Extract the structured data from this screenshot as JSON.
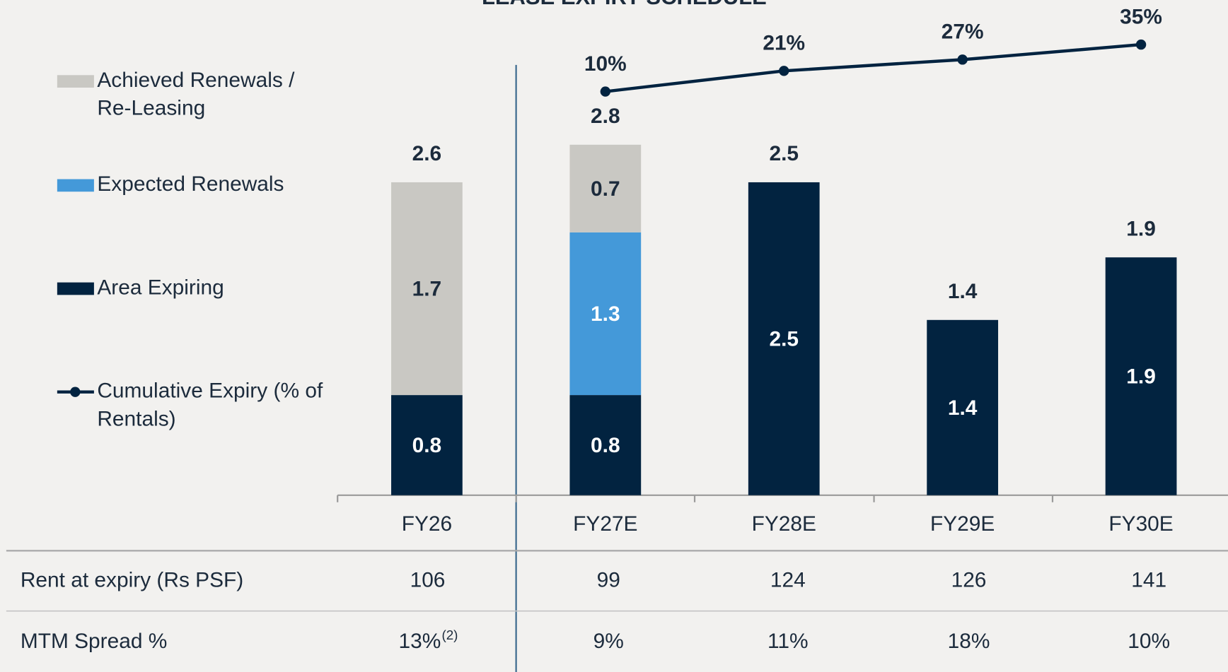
{
  "chart_data": {
    "type": "stacked-bar-line",
    "title": "LEASE EXPIRY SCHEDULE",
    "categories": [
      "FY26",
      "FY27E",
      "FY28E",
      "FY29E",
      "FY30E"
    ],
    "series": [
      {
        "name": "Area Expiring",
        "color": "#022340",
        "label_color": "#ffffff",
        "values": [
          0.8,
          0.8,
          2.5,
          1.4,
          1.9
        ]
      },
      {
        "name": "Expected Renewals",
        "color": "#4499d9",
        "label_color": "#ffffff",
        "values": [
          null,
          1.3,
          null,
          null,
          null
        ]
      },
      {
        "name": "Achieved Renewals / Re-Leasing",
        "color": "#c9c8c3",
        "label_color": "#1c2b3c",
        "values": [
          1.7,
          0.7,
          null,
          null,
          null
        ]
      }
    ],
    "totals": [
      2.6,
      2.8,
      2.5,
      1.4,
      1.9
    ],
    "line": {
      "name": "Cumulative Expiry (% of Rentals)",
      "color": "#022340",
      "values": [
        null,
        10,
        21,
        27,
        35
      ],
      "value_labels": [
        null,
        "10%",
        "21%",
        "27%",
        "35%"
      ]
    },
    "table": {
      "rows": [
        {
          "label": "Rent at expiry (Rs PSF)",
          "cells": [
            "106",
            "99",
            "124",
            "126",
            "141"
          ]
        },
        {
          "label": "MTM Spread %",
          "cells": [
            "13%",
            "9%",
            "11%",
            "18%",
            "10%"
          ],
          "note": "(2)"
        }
      ]
    }
  }
}
